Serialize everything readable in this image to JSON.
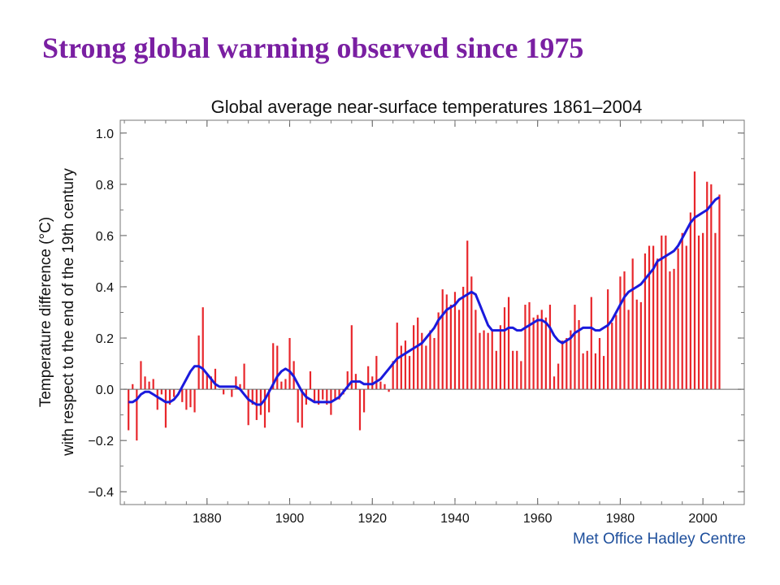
{
  "slide": {
    "title": "Strong global warming observed since 1975"
  },
  "chart_data": {
    "type": "bar",
    "title": "Global average near-surface temperatures 1861–2004",
    "xlabel": "",
    "ylabel_line1": "Temperature difference (°C)",
    "ylabel_line2": "with respect to the end of the 19th century",
    "credit": "Met Office Hadley Centre",
    "xlim": [
      1859,
      2010
    ],
    "ylim": [
      -0.45,
      1.05
    ],
    "x_ticks": [
      1880,
      1900,
      1920,
      1940,
      1960,
      1980,
      2000
    ],
    "x_tick_labels": [
      "1880",
      "1900",
      "1920",
      "1940",
      "1960",
      "1980",
      "2000"
    ],
    "y_ticks": [
      -0.4,
      -0.2,
      0.0,
      0.2,
      0.4,
      0.6,
      0.8,
      1.0
    ],
    "y_tick_labels": [
      "−0.4",
      "−0.2",
      "0.0",
      "0.2",
      "0.4",
      "0.6",
      "0.8",
      "1.0"
    ],
    "grid": false,
    "bar_color": "#e8262b",
    "smooth_color": "#1a1adc",
    "series": [
      {
        "name": "",
        "kind": "bar",
        "x": [
          1861,
          1862,
          1863,
          1864,
          1865,
          1866,
          1867,
          1868,
          1869,
          1870,
          1871,
          1872,
          1873,
          1874,
          1875,
          1876,
          1877,
          1878,
          1879,
          1880,
          1881,
          1882,
          1883,
          1884,
          1885,
          1886,
          1887,
          1888,
          1889,
          1890,
          1891,
          1892,
          1893,
          1894,
          1895,
          1896,
          1897,
          1898,
          1899,
          1900,
          1901,
          1902,
          1903,
          1904,
          1905,
          1906,
          1907,
          1908,
          1909,
          1910,
          1911,
          1912,
          1913,
          1914,
          1915,
          1916,
          1917,
          1918,
          1919,
          1920,
          1921,
          1922,
          1923,
          1924,
          1925,
          1926,
          1927,
          1928,
          1929,
          1930,
          1931,
          1932,
          1933,
          1934,
          1935,
          1936,
          1937,
          1938,
          1939,
          1940,
          1941,
          1942,
          1943,
          1944,
          1945,
          1946,
          1947,
          1948,
          1949,
          1950,
          1951,
          1952,
          1953,
          1954,
          1955,
          1956,
          1957,
          1958,
          1959,
          1960,
          1961,
          1962,
          1963,
          1964,
          1965,
          1966,
          1967,
          1968,
          1969,
          1970,
          1971,
          1972,
          1973,
          1974,
          1975,
          1976,
          1977,
          1978,
          1979,
          1980,
          1981,
          1982,
          1983,
          1984,
          1985,
          1986,
          1987,
          1988,
          1989,
          1990,
          1991,
          1992,
          1993,
          1994,
          1995,
          1996,
          1997,
          1998,
          1999,
          2000,
          2001,
          2002,
          2003,
          2004
        ],
        "values": [
          -0.16,
          0.02,
          -0.2,
          0.11,
          0.05,
          0.03,
          0.04,
          -0.08,
          -0.02,
          -0.15,
          -0.06,
          -0.03,
          0.0,
          -0.05,
          -0.08,
          -0.07,
          -0.09,
          0.21,
          0.32,
          0.06,
          0.05,
          0.08,
          0.0,
          -0.02,
          0.0,
          -0.03,
          0.05,
          0.02,
          0.1,
          -0.14,
          -0.06,
          -0.12,
          -0.1,
          -0.15,
          -0.09,
          0.18,
          0.17,
          0.03,
          0.04,
          0.2,
          0.11,
          -0.13,
          -0.15,
          -0.06,
          0.07,
          -0.05,
          -0.06,
          -0.04,
          -0.06,
          -0.1,
          -0.04,
          -0.04,
          -0.02,
          0.07,
          0.25,
          0.06,
          -0.16,
          -0.09,
          0.09,
          0.05,
          0.13,
          0.03,
          0.02,
          -0.01,
          0.11,
          0.26,
          0.17,
          0.19,
          0.13,
          0.25,
          0.28,
          0.22,
          0.17,
          0.23,
          0.2,
          0.3,
          0.39,
          0.37,
          0.33,
          0.38,
          0.31,
          0.4,
          0.58,
          0.44,
          0.31,
          0.22,
          0.23,
          0.22,
          0.23,
          0.15,
          0.25,
          0.32,
          0.36,
          0.15,
          0.15,
          0.11,
          0.33,
          0.34,
          0.28,
          0.29,
          0.31,
          0.28,
          0.33,
          0.05,
          0.1,
          0.19,
          0.2,
          0.23,
          0.33,
          0.27,
          0.14,
          0.15,
          0.36,
          0.14,
          0.2,
          0.13,
          0.39,
          0.26,
          0.29,
          0.44,
          0.46,
          0.31,
          0.51,
          0.35,
          0.34,
          0.53,
          0.56,
          0.56,
          0.51,
          0.6,
          0.6,
          0.46,
          0.47,
          0.55,
          0.61,
          0.56,
          0.69,
          0.85,
          0.6,
          0.61,
          0.81,
          0.8,
          0.61,
          0.76
        ]
      },
      {
        "name": "",
        "kind": "smoothed_line",
        "x": [
          1861,
          1862,
          1863,
          1864,
          1865,
          1866,
          1867,
          1868,
          1869,
          1870,
          1871,
          1872,
          1873,
          1874,
          1875,
          1876,
          1877,
          1878,
          1879,
          1880,
          1881,
          1882,
          1883,
          1884,
          1885,
          1886,
          1887,
          1888,
          1889,
          1890,
          1891,
          1892,
          1893,
          1894,
          1895,
          1896,
          1897,
          1898,
          1899,
          1900,
          1901,
          1902,
          1903,
          1904,
          1905,
          1906,
          1907,
          1908,
          1909,
          1910,
          1911,
          1912,
          1913,
          1914,
          1915,
          1916,
          1917,
          1918,
          1919,
          1920,
          1921,
          1922,
          1923,
          1924,
          1925,
          1926,
          1927,
          1928,
          1929,
          1930,
          1931,
          1932,
          1933,
          1934,
          1935,
          1936,
          1937,
          1938,
          1939,
          1940,
          1941,
          1942,
          1943,
          1944,
          1945,
          1946,
          1947,
          1948,
          1949,
          1950,
          1951,
          1952,
          1953,
          1954,
          1955,
          1956,
          1957,
          1958,
          1959,
          1960,
          1961,
          1962,
          1963,
          1964,
          1965,
          1966,
          1967,
          1968,
          1969,
          1970,
          1971,
          1972,
          1973,
          1974,
          1975,
          1976,
          1977,
          1978,
          1979,
          1980,
          1981,
          1982,
          1983,
          1984,
          1985,
          1986,
          1987,
          1988,
          1989,
          1990,
          1991,
          1992,
          1993,
          1994,
          1995,
          1996,
          1997,
          1998,
          1999,
          2000,
          2001,
          2002,
          2003,
          2004
        ],
        "values": [
          -0.05,
          -0.05,
          -0.04,
          -0.02,
          -0.01,
          -0.01,
          -0.02,
          -0.03,
          -0.04,
          -0.05,
          -0.05,
          -0.04,
          -0.02,
          0.01,
          0.04,
          0.07,
          0.09,
          0.09,
          0.08,
          0.06,
          0.04,
          0.02,
          0.01,
          0.01,
          0.01,
          0.01,
          0.01,
          0.0,
          -0.02,
          -0.04,
          -0.05,
          -0.06,
          -0.06,
          -0.04,
          -0.01,
          0.02,
          0.05,
          0.07,
          0.08,
          0.07,
          0.05,
          0.02,
          -0.01,
          -0.03,
          -0.04,
          -0.05,
          -0.05,
          -0.05,
          -0.05,
          -0.05,
          -0.04,
          -0.03,
          -0.01,
          0.01,
          0.03,
          0.03,
          0.03,
          0.02,
          0.02,
          0.02,
          0.03,
          0.04,
          0.06,
          0.08,
          0.1,
          0.12,
          0.13,
          0.14,
          0.15,
          0.16,
          0.17,
          0.18,
          0.2,
          0.22,
          0.24,
          0.27,
          0.29,
          0.31,
          0.32,
          0.33,
          0.35,
          0.36,
          0.37,
          0.38,
          0.37,
          0.33,
          0.29,
          0.25,
          0.23,
          0.23,
          0.23,
          0.23,
          0.24,
          0.24,
          0.23,
          0.23,
          0.24,
          0.25,
          0.26,
          0.27,
          0.27,
          0.26,
          0.24,
          0.21,
          0.19,
          0.18,
          0.19,
          0.2,
          0.22,
          0.23,
          0.24,
          0.24,
          0.24,
          0.23,
          0.23,
          0.24,
          0.25,
          0.27,
          0.3,
          0.33,
          0.36,
          0.38,
          0.39,
          0.4,
          0.41,
          0.43,
          0.45,
          0.47,
          0.5,
          0.51,
          0.52,
          0.53,
          0.54,
          0.56,
          0.59,
          0.62,
          0.65,
          0.67,
          0.68,
          0.69,
          0.7,
          0.72,
          0.74,
          0.75
        ]
      }
    ]
  }
}
